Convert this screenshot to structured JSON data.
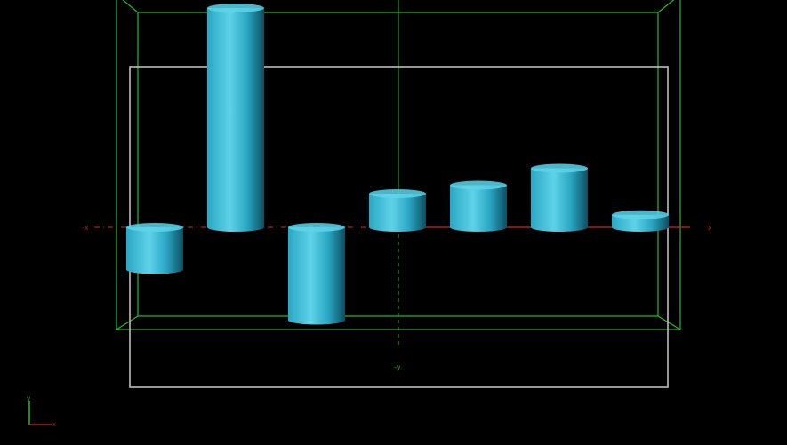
{
  "chart_data": {
    "type": "bar",
    "projection": "3d-cylinder",
    "bar_shape": "cylinder",
    "background": "#000000",
    "colors": {
      "bar_light": "#5fd2e8",
      "bar_mid": "#2aa7c4",
      "bar_dark": "#0c4f63",
      "bounding_box": "#2db82d",
      "outer_frame": "#bdbdbd",
      "x_axis": "#b41e1e",
      "y_axis": "#2db82d",
      "origin_marker": "#3b5bff"
    },
    "title": "",
    "xlabel": "",
    "ylabel": "",
    "grid": false,
    "legend": "none",
    "ylim": [
      -1.1,
      2.6
    ],
    "values": [
      -0.5,
      2.6,
      -1.1,
      0.4,
      0.5,
      0.7,
      0.15
    ],
    "axis_labels": {
      "x_neg": "-x",
      "x_pos": "x",
      "y_neg": "-y",
      "triad_y": "y",
      "triad_x": "x"
    }
  }
}
